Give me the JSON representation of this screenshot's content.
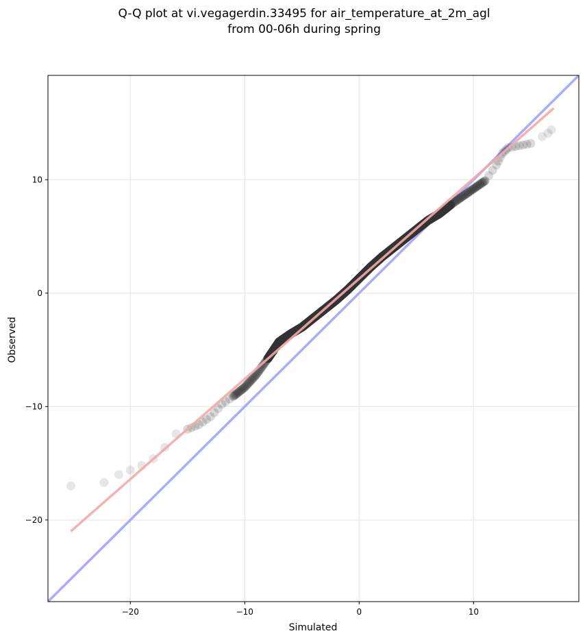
{
  "chart_data": {
    "type": "scatter",
    "title_lines": [
      "Q-Q plot at vi.vegagerdin.33495 for air_temperature_at_2m_agl",
      "from 00-06h during spring"
    ],
    "xlabel": "Simulated",
    "ylabel": "Observed",
    "xlim": [
      -27.2,
      19.2
    ],
    "ylim": [
      -27.2,
      19.2
    ],
    "xticks": [
      -20,
      -10,
      0,
      10
    ],
    "yticks": [
      -20,
      -10,
      0,
      10
    ],
    "xtick_labels": [
      "−20",
      "−10",
      "0",
      "10"
    ],
    "ytick_labels": [
      "−20",
      "−10",
      "0",
      "10"
    ],
    "grid": true,
    "reference_line": {
      "from": [
        -27.2,
        -27.2
      ],
      "to": [
        19.2,
        19.2
      ],
      "color": "#aaaaff"
    },
    "fit_line": {
      "from": [
        -25.2,
        -21.0
      ],
      "to": [
        17.0,
        16.3
      ],
      "color": "#f4a8a8"
    },
    "point_color": "#333333",
    "quantile_curve": [
      [
        -25.2,
        -17.0
      ],
      [
        -22.3,
        -16.7
      ],
      [
        -21.0,
        -16.0
      ],
      [
        -20.0,
        -15.6
      ],
      [
        -19.0,
        -15.2
      ],
      [
        -18.0,
        -14.6
      ],
      [
        -17.0,
        -13.6
      ],
      [
        -16.0,
        -12.4
      ],
      [
        -15.0,
        -12.0
      ],
      [
        -14.0,
        -11.6
      ],
      [
        -13.0,
        -10.9
      ],
      [
        -12.0,
        -9.8
      ],
      [
        -11.0,
        -9.1
      ],
      [
        -10.0,
        -8.3
      ],
      [
        -9.0,
        -7.2
      ],
      [
        -8.0,
        -5.8
      ],
      [
        -7.0,
        -4.3
      ],
      [
        -6.0,
        -3.6
      ],
      [
        -5.0,
        -3.0
      ],
      [
        -4.0,
        -2.2
      ],
      [
        -3.0,
        -1.4
      ],
      [
        -2.0,
        -0.6
      ],
      [
        -1.0,
        0.3
      ],
      [
        0.0,
        1.3
      ],
      [
        1.0,
        2.3
      ],
      [
        2.0,
        3.2
      ],
      [
        3.0,
        4.0
      ],
      [
        4.0,
        4.8
      ],
      [
        5.0,
        5.6
      ],
      [
        6.0,
        6.4
      ],
      [
        7.0,
        7.0
      ],
      [
        8.0,
        7.8
      ],
      [
        9.0,
        8.5
      ],
      [
        10.0,
        9.2
      ],
      [
        11.0,
        9.9
      ],
      [
        12.0,
        11.3
      ],
      [
        12.5,
        12.3
      ],
      [
        13.0,
        12.8
      ],
      [
        14.0,
        13.0
      ],
      [
        15.0,
        13.2
      ],
      [
        16.0,
        13.8
      ],
      [
        16.5,
        14.1
      ],
      [
        16.8,
        14.4
      ]
    ]
  }
}
